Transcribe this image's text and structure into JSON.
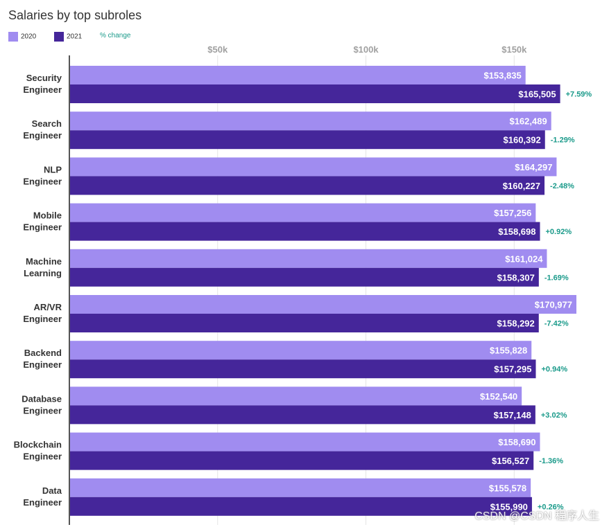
{
  "chart_data": {
    "type": "bar",
    "orientation": "horizontal",
    "title": "Salaries by top subroles",
    "categories": [
      [
        "Security",
        "Engineer"
      ],
      [
        "Search",
        "Engineer"
      ],
      [
        "NLP",
        "Engineer"
      ],
      [
        "Mobile",
        "Engineer"
      ],
      [
        "Machine",
        "Learning"
      ],
      [
        "AR/VR",
        "Engineer"
      ],
      [
        "Backend",
        "Engineer"
      ],
      [
        "Database",
        "Engineer"
      ],
      [
        "Blockchain",
        "Engineer"
      ],
      [
        "Data",
        "Engineer"
      ]
    ],
    "series": [
      {
        "name": "2020",
        "color": "#a08cf0",
        "values": [
          153835,
          162489,
          164297,
          157256,
          161024,
          170977,
          155828,
          152540,
          158690,
          155578
        ],
        "labels": [
          "$153,835",
          "$162,489",
          "$164,297",
          "$157,256",
          "$161,024",
          "$170,977",
          "$155,828",
          "$152,540",
          "$158,690",
          "$155,578"
        ]
      },
      {
        "name": "2021",
        "color": "#45269a",
        "values": [
          165505,
          160392,
          160227,
          158698,
          158307,
          158292,
          157295,
          157148,
          156527,
          155990
        ],
        "labels": [
          "$165,505",
          "$160,392",
          "$160,227",
          "$158,698",
          "$158,307",
          "$158,292",
          "$157,295",
          "$157,148",
          "$156,527",
          "$155,990"
        ]
      }
    ],
    "pct_change": {
      "name": "% change",
      "color": "#1a9a8a",
      "labels": [
        "+7.59%",
        "-1.29%",
        "-2.48%",
        "+0.92%",
        "-1.69%",
        "-7.42%",
        "+0.94%",
        "+3.02%",
        "-1.36%",
        "+0.26%"
      ]
    },
    "x_ticks": [
      {
        "value": 50000,
        "label": "$50k"
      },
      {
        "value": 100000,
        "label": "$100k"
      },
      {
        "value": 150000,
        "label": "$150k"
      }
    ],
    "xlim": [
      0,
      170977
    ],
    "grid": true,
    "legend_position": "top-left"
  },
  "watermark": "CSDN @CSDN 程序人生"
}
